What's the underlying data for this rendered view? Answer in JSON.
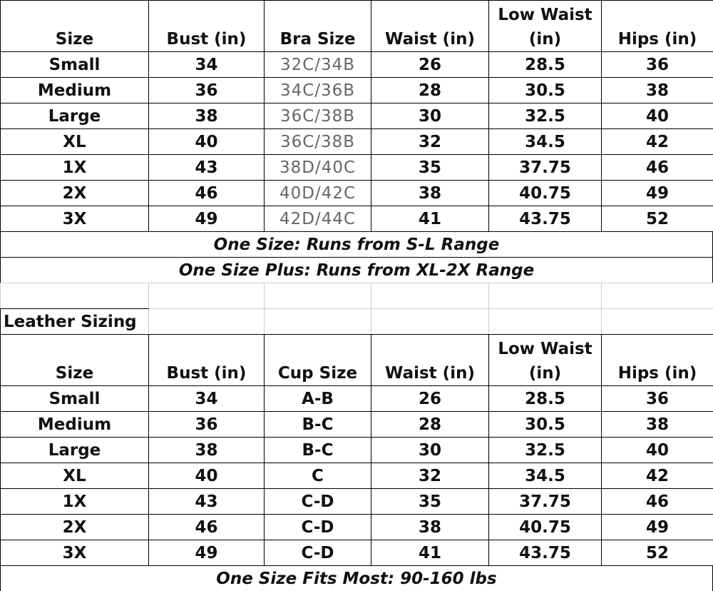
{
  "size_chart": {
    "header": [
      "Size",
      "Bust (in)",
      "Bra Size",
      "Waist (in)",
      "Low Waist (in)",
      "Hips (in)"
    ],
    "rows": [
      [
        "Small",
        "34",
        "32C/34B",
        "26",
        "28.5",
        "36"
      ],
      [
        "Medium",
        "36",
        "34C/36B",
        "28",
        "30.5",
        "38"
      ],
      [
        "Large",
        "38",
        "36C/38B",
        "30",
        "32.5",
        "40"
      ],
      [
        "XL",
        "40",
        "36C/38B",
        "32",
        "34.5",
        "42"
      ],
      [
        "1X",
        "43",
        "38D/40C",
        "35",
        "37.75",
        "46"
      ],
      [
        "2X",
        "46",
        "40D/42C",
        "38",
        "40.75",
        "49"
      ],
      [
        "3X",
        "49",
        "42D/44C",
        "41",
        "43.75",
        "52"
      ]
    ],
    "notes": [
      "One Size: Runs from S-L Range",
      "One Size Plus: Runs from XL-2X Range"
    ]
  },
  "leather_chart": {
    "title": "Leather Sizing",
    "header": [
      "Size",
      "Bust (in)",
      "Cup Size",
      "Waist (in)",
      "Low Waist (in)",
      "Hips (in)"
    ],
    "rows": [
      [
        "Small",
        "34",
        "A-B",
        "26",
        "28.5",
        "36"
      ],
      [
        "Medium",
        "36",
        "B-C",
        "28",
        "30.5",
        "38"
      ],
      [
        "Large",
        "38",
        "B-C",
        "30",
        "32.5",
        "40"
      ],
      [
        "XL",
        "40",
        "C",
        "32",
        "34.5",
        "42"
      ],
      [
        "1X",
        "43",
        "C-D",
        "35",
        "37.75",
        "46"
      ],
      [
        "2X",
        "46",
        "C-D",
        "38",
        "40.75",
        "49"
      ],
      [
        "3X",
        "49",
        "C-D",
        "41",
        "43.75",
        "52"
      ]
    ],
    "notes": [
      "One Size Fits Most: 90-160 lbs"
    ]
  }
}
